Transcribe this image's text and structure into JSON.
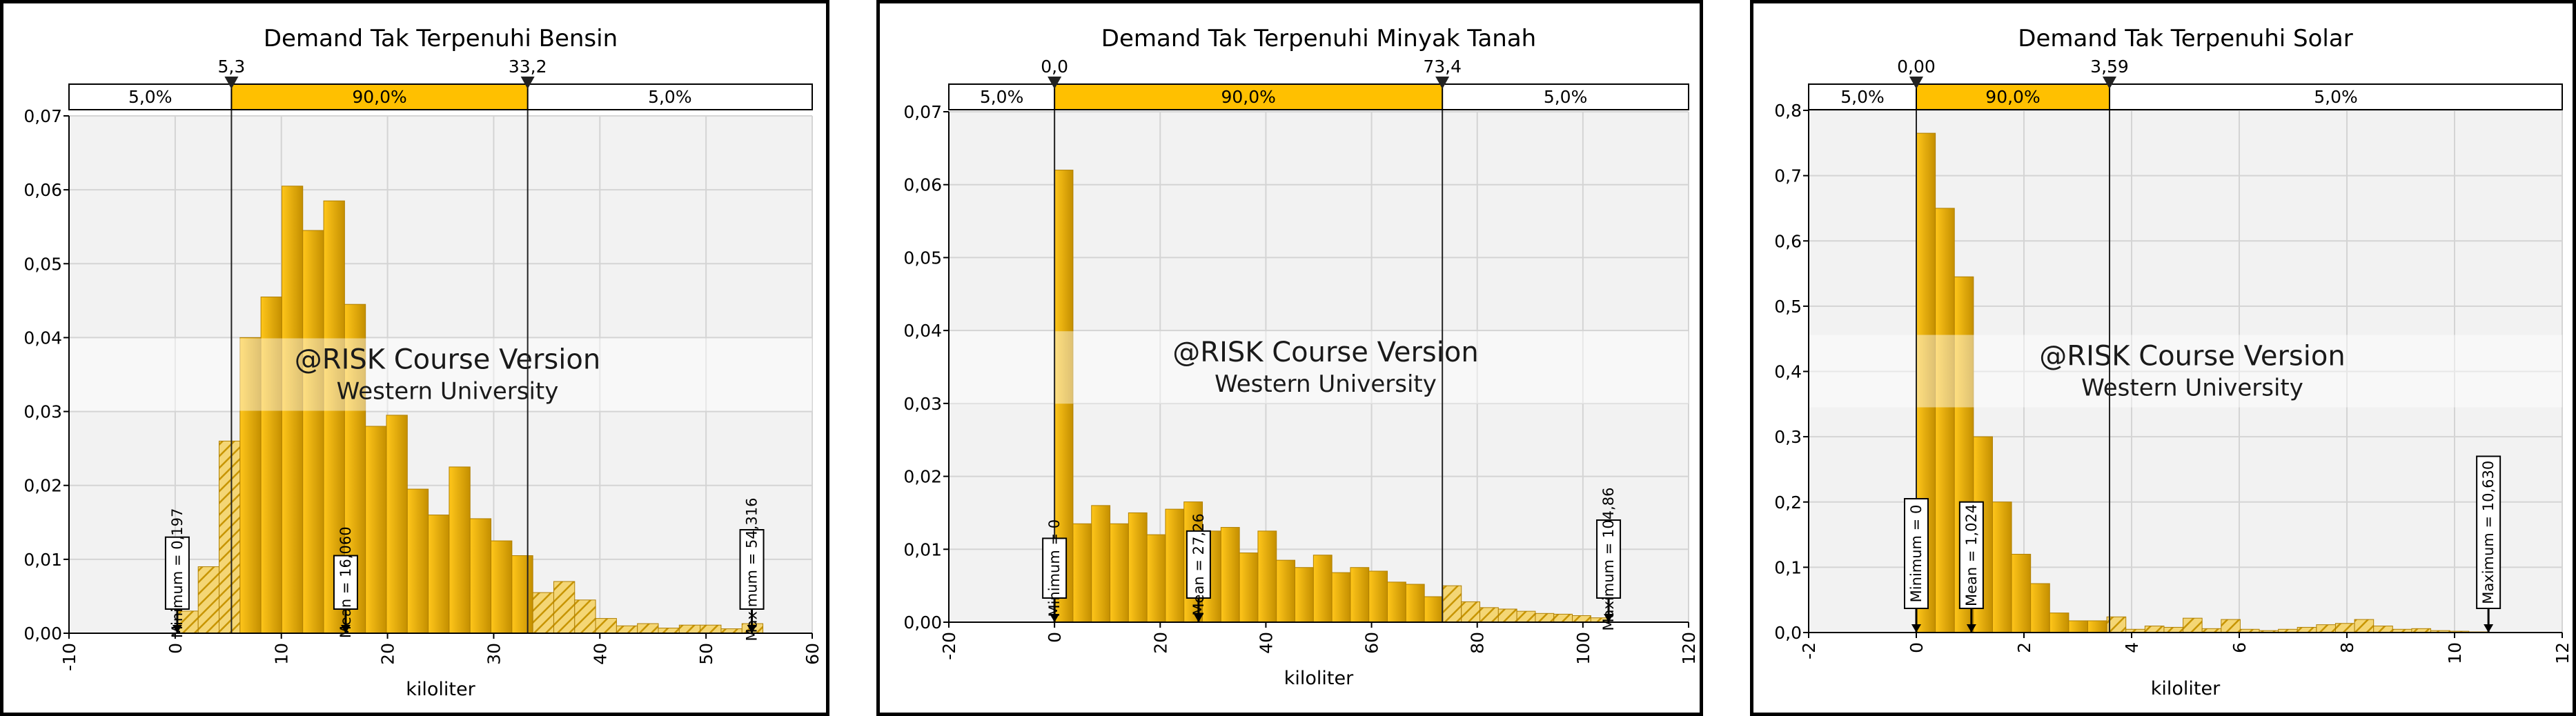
{
  "colors": {
    "bar": "#d9a300",
    "bar_light": "#ffc000",
    "pct_bar": "#ffc000",
    "watermark_band": "#ffffff"
  },
  "watermark": {
    "line1": "@RISK Course Version",
    "line2": "Western University"
  },
  "chart_data": [
    {
      "type": "bar",
      "title": "Demand Tak Terpenuhi Bensin",
      "xlabel": "kiloliter",
      "ylabel": "",
      "xlim": [
        -10,
        60
      ],
      "ylim": [
        0,
        0.07
      ],
      "x_ticks": [
        -10,
        0,
        10,
        20,
        30,
        40,
        50,
        60
      ],
      "x_tick_labels": [
        "-10",
        "0",
        "10",
        "20",
        "30",
        "40",
        "50",
        "60"
      ],
      "y_ticks": [
        0,
        0.01,
        0.02,
        0.03,
        0.04,
        0.05,
        0.06,
        0.07
      ],
      "y_tick_labels": [
        "0,00",
        "0,01",
        "0,02",
        "0,03",
        "0,04",
        "0,05",
        "0,06",
        "0,07"
      ],
      "grid": true,
      "bin_start": 0.197,
      "bin_width": 1.97,
      "values": [
        0.003,
        0.009,
        0.026,
        0.04,
        0.0455,
        0.0605,
        0.0545,
        0.0585,
        0.0445,
        0.028,
        0.0295,
        0.0195,
        0.016,
        0.0225,
        0.0155,
        0.0125,
        0.0105,
        0.0055,
        0.007,
        0.0045,
        0.002,
        0.001,
        0.0013,
        0.0007,
        0.0011,
        0.0011,
        0.0006,
        0.0013
      ],
      "percentiles": {
        "left_value": "5,3",
        "right_value": "33,2",
        "left_pct": "5,0%",
        "mid_pct": "90,0%",
        "right_pct": "5,0%",
        "left_x": 5.3,
        "right_x": 33.2
      },
      "markers": [
        {
          "label": "Minimum = 0,197",
          "x": 0.197,
          "y": 0.013
        },
        {
          "label": "Mean = 16,060",
          "x": 16.06,
          "y": 0.0105
        },
        {
          "label": "Maximum = 54,316",
          "x": 54.316,
          "y": 0.014
        }
      ]
    },
    {
      "type": "bar",
      "title": "Demand Tak Terpenuhi Minyak Tanah",
      "xlabel": "kiloliter",
      "ylabel": "",
      "xlim": [
        -20,
        120
      ],
      "ylim": [
        0,
        0.07
      ],
      "x_ticks": [
        -20,
        0,
        20,
        40,
        60,
        80,
        100,
        120
      ],
      "x_tick_labels": [
        "-20",
        "0",
        "20",
        "40",
        "60",
        "80",
        "100",
        "120"
      ],
      "y_ticks": [
        0,
        0.01,
        0.02,
        0.03,
        0.04,
        0.05,
        0.06,
        0.07
      ],
      "y_tick_labels": [
        "0,00",
        "0,01",
        "0,02",
        "0,03",
        "0,04",
        "0,05",
        "0,06",
        "0,07"
      ],
      "grid": true,
      "bin_start": 0,
      "bin_width": 3.5,
      "values": [
        0.062,
        0.0135,
        0.016,
        0.0135,
        0.015,
        0.012,
        0.0155,
        0.0165,
        0.0125,
        0.013,
        0.0095,
        0.0125,
        0.0085,
        0.0075,
        0.0092,
        0.0068,
        0.0075,
        0.007,
        0.0055,
        0.0052,
        0.0035,
        0.005,
        0.0028,
        0.002,
        0.0018,
        0.0015,
        0.0012,
        0.0011,
        0.0009,
        0.0006
      ],
      "percentiles": {
        "left_value": "0,0",
        "right_value": "73,4",
        "left_pct": "5,0%",
        "mid_pct": "90,0%",
        "right_pct": "5,0%",
        "left_x": 0,
        "right_x": 73.4
      },
      "markers": [
        {
          "label": "Minimum = 0",
          "x": 0,
          "y": 0.0115
        },
        {
          "label": "Mean = 27,26",
          "x": 27.26,
          "y": 0.0125
        },
        {
          "label": "Maximum = 104,86",
          "x": 104.86,
          "y": 0.014
        }
      ]
    },
    {
      "type": "bar",
      "title": "Demand Tak Terpenuhi Solar",
      "xlabel": "kiloliter",
      "ylabel": "",
      "xlim": [
        -2,
        12
      ],
      "ylim": [
        0,
        0.8
      ],
      "x_ticks": [
        -2,
        0,
        2,
        4,
        6,
        8,
        10,
        12
      ],
      "x_tick_labels": [
        "-2",
        "0",
        "2",
        "4",
        "6",
        "8",
        "10",
        "12"
      ],
      "y_ticks": [
        0,
        0.1,
        0.2,
        0.3,
        0.4,
        0.5,
        0.6,
        0.7,
        0.8
      ],
      "y_tick_labels": [
        "0,0",
        "0,1",
        "0,2",
        "0,3",
        "0,4",
        "0,5",
        "0,6",
        "0,7",
        "0,8"
      ],
      "grid": true,
      "bin_start": 0,
      "bin_width": 0.354,
      "values": [
        0.765,
        0.65,
        0.545,
        0.3,
        0.2,
        0.12,
        0.075,
        0.03,
        0.018,
        0.018,
        0.024,
        0.005,
        0.01,
        0.008,
        0.022,
        0.006,
        0.02,
        0.005,
        0.003,
        0.005,
        0.008,
        0.012,
        0.014,
        0.02,
        0.01,
        0.005,
        0.006,
        0.003,
        0.002,
        0.001,
        0.0,
        0.0
      ],
      "percentiles": {
        "left_value": "0,00",
        "right_value": "3,59",
        "left_pct": "5,0%",
        "mid_pct": "90,0%",
        "right_pct": "5,0%",
        "left_x": 0,
        "right_x": 3.59
      },
      "markers": [
        {
          "label": "Minimum = 0",
          "x": 0,
          "y": 0.205
        },
        {
          "label": "Mean = 1,024",
          "x": 1.024,
          "y": 0.2
        },
        {
          "label": "Maximum = 10,630",
          "x": 10.63,
          "y": 0.27
        }
      ]
    }
  ]
}
